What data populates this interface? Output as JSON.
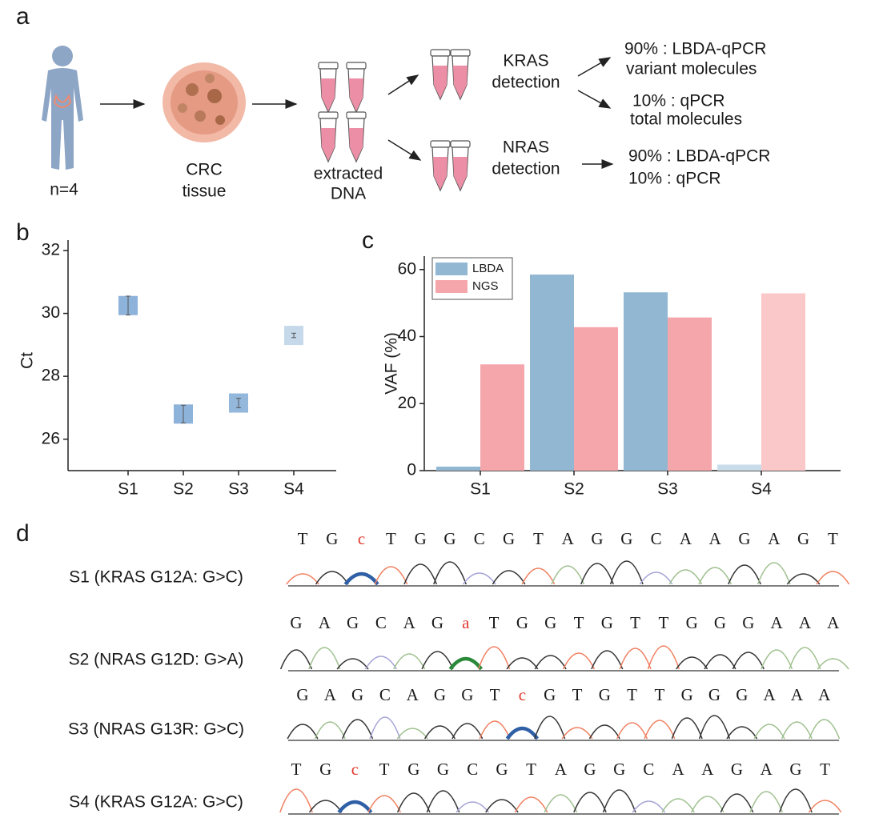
{
  "panel_labels": [
    "a",
    "b",
    "c",
    "d"
  ],
  "workflow": {
    "subject": "n=4",
    "tissue": [
      "CRC",
      "tissue"
    ],
    "dna": [
      "extracted",
      "DNA"
    ],
    "kras": [
      "KRAS",
      "detection"
    ],
    "nras": [
      "NRAS",
      "detection"
    ],
    "kras_out": [
      "90% : LBDA-qPCR",
      "variant molecules",
      "10% : qPCR",
      "total molecules"
    ],
    "nras_out": [
      "90% : LBDA-qPCR",
      "10% : qPCR"
    ]
  },
  "chart_data": [
    {
      "type": "scatter",
      "ylabel": "Ct",
      "categories": [
        "S1",
        "S2",
        "S3",
        "S4"
      ],
      "values": [
        30.25,
        26.8,
        27.15,
        29.3
      ],
      "errors": [
        0.3,
        0.28,
        0.15,
        0.07
      ],
      "colors": [
        "#8db3da",
        "#8db3da",
        "#93b8dc",
        "#c6d9ea"
      ],
      "ylim": [
        25,
        32
      ],
      "yticks": [
        26,
        28,
        30,
        32
      ]
    },
    {
      "type": "bar",
      "ylabel": "VAF (%)",
      "categories": [
        "S1",
        "S2",
        "S3",
        "S4"
      ],
      "series": [
        {
          "name": "LBDA",
          "color": "#91b7d3",
          "colors": [
            "#91b7d3",
            "#91b7d3",
            "#91b7d3",
            "#c9dcea"
          ],
          "values": [
            1.2,
            58.5,
            53.2,
            1.8
          ]
        },
        {
          "name": "NGS",
          "color": "#f5a6ab",
          "colors": [
            "#f5a6ab",
            "#f5a6ab",
            "#f5a6ab",
            "#fbc8c9"
          ],
          "values": [
            31.7,
            42.8,
            45.7,
            52.9
          ]
        }
      ],
      "ylim": [
        0,
        64
      ],
      "yticks": [
        0,
        20,
        40,
        60
      ],
      "legend": "upper left"
    }
  ],
  "sequencing": [
    {
      "label": "S1 (KRAS G12A: G>C)",
      "sequence": [
        "T",
        "G",
        "c",
        "T",
        "G",
        "G",
        "C",
        "G",
        "T",
        "A",
        "G",
        "G",
        "C",
        "A",
        "A",
        "G",
        "A",
        "G",
        "T"
      ]
    },
    {
      "label": "S2 (NRAS G12D: G>A)",
      "sequence": [
        "G",
        "A",
        "G",
        "C",
        "A",
        "G",
        "a",
        "T",
        "G",
        "G",
        "T",
        "G",
        "T",
        "T",
        "G",
        "G",
        "G",
        "A",
        "A",
        "A"
      ]
    },
    {
      "label": "S3 (NRAS G13R: G>C)",
      "sequence": [
        "G",
        "A",
        "G",
        "C",
        "A",
        "G",
        "G",
        "T",
        "c",
        "G",
        "T",
        "G",
        "T",
        "T",
        "G",
        "G",
        "G",
        "A",
        "A",
        "A"
      ]
    },
    {
      "label": "S4 (KRAS G12A: G>C)",
      "sequence": [
        "T",
        "G",
        "c",
        "T",
        "G",
        "G",
        "C",
        "G",
        "T",
        "A",
        "G",
        "G",
        "C",
        "A",
        "A",
        "G",
        "A",
        "G",
        "T"
      ]
    }
  ]
}
